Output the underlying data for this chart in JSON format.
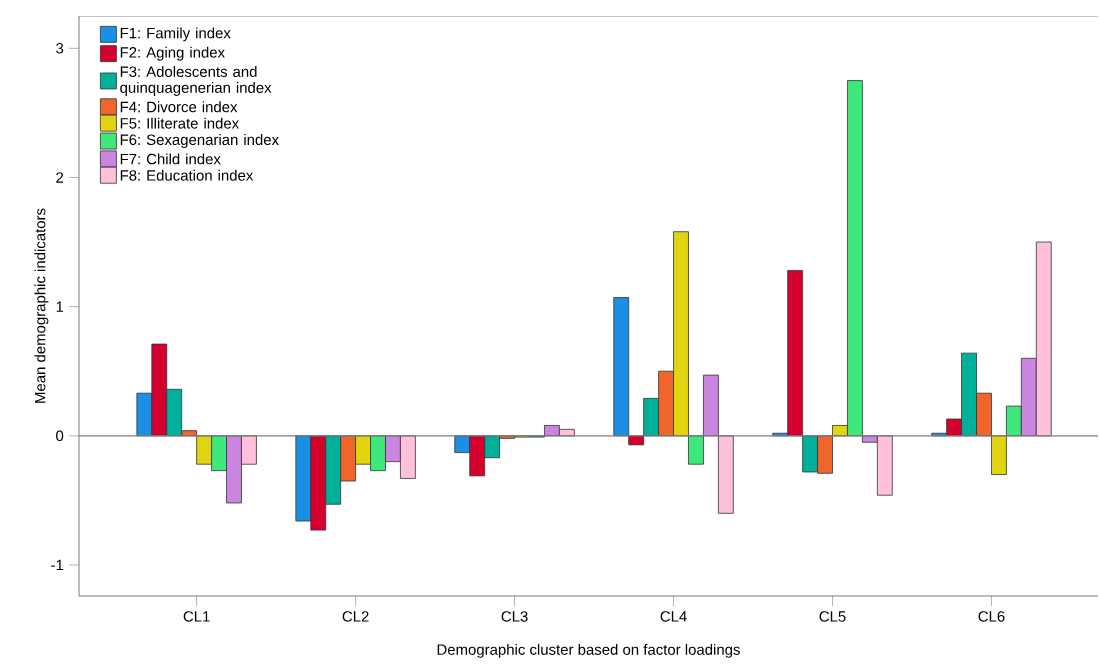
{
  "chart_data": {
    "type": "bar",
    "xlabel": "Demographic cluster based on factor loadings",
    "ylabel": "Mean demographic indicators",
    "categories": [
      "CL1",
      "CL2",
      "CL3",
      "CL4",
      "CL5",
      "CL6"
    ],
    "series": [
      {
        "name": "F1: Family index",
        "color": "#1b8fe3",
        "values": [
          0.33,
          -0.66,
          -0.13,
          1.07,
          0.02,
          0.02
        ]
      },
      {
        "name": "F2: Aging index",
        "color": "#d6002f",
        "values": [
          0.71,
          -0.73,
          -0.31,
          -0.07,
          1.28,
          0.13
        ]
      },
      {
        "name": "F3: Adolescents and quinquagenerian index",
        "color": "#00b09a",
        "values": [
          0.36,
          -0.53,
          -0.17,
          0.29,
          -0.28,
          0.64
        ]
      },
      {
        "name": "F4: Divorce index",
        "color": "#f0662a",
        "values": [
          0.04,
          -0.35,
          -0.02,
          0.5,
          -0.29,
          0.33
        ]
      },
      {
        "name": "F5: Illiterate index",
        "color": "#e0d510",
        "values": [
          -0.22,
          -0.22,
          -0.01,
          1.58,
          0.08,
          -0.3
        ]
      },
      {
        "name": "F6: Sexagenarian index",
        "color": "#3ee87a",
        "values": [
          -0.27,
          -0.27,
          -0.01,
          -0.22,
          2.75,
          0.23
        ]
      },
      {
        "name": "F7: Child index",
        "color": "#c985e0",
        "values": [
          -0.52,
          -0.2,
          0.08,
          0.47,
          -0.05,
          0.6
        ]
      },
      {
        "name": "F8: Education index",
        "color": "#ffc0dc",
        "values": [
          -0.22,
          -0.33,
          0.05,
          -0.6,
          -0.46,
          1.5
        ]
      }
    ],
    "ylim": [
      -1.24,
      3.25
    ],
    "yticks": [
      -1,
      0,
      1,
      2,
      3
    ],
    "ref_lines": [
      {
        "axis": "y",
        "value": 0,
        "color": "#7f7f7f"
      }
    ],
    "grid": false,
    "legend": "top left"
  }
}
